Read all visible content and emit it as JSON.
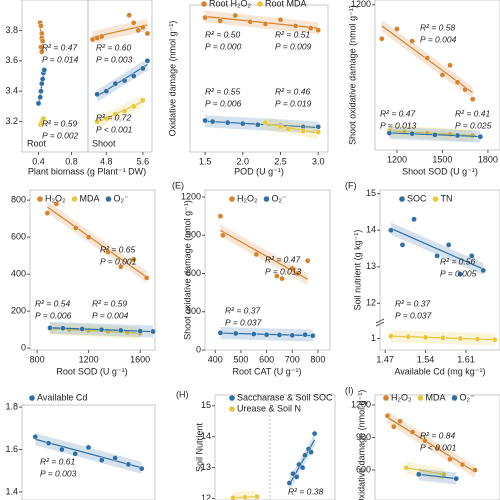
{
  "chart_data": [
    {
      "type": "scatter",
      "label": "Root",
      "xlabel": "Plant biomass (g Plant⁻¹ DW)",
      "xlim": [
        0.2,
        1.0
      ],
      "ylim": [
        3.0,
        4.0
      ],
      "xticks": [
        0.4,
        0.8
      ],
      "yticks": [
        3.2,
        3.4,
        3.6,
        3.8
      ],
      "series": [
        {
          "color": "#d9822b",
          "x": [
            0.42,
            0.43,
            0.44,
            0.44,
            0.45,
            0.43,
            0.44
          ],
          "y": [
            3.85,
            3.83,
            3.78,
            3.75,
            3.73,
            3.69,
            3.66
          ]
        },
        {
          "color": "#2f6fa8",
          "x": [
            0.4,
            0.42,
            0.43,
            0.44,
            0.45,
            0.46,
            0.47
          ],
          "y": [
            3.32,
            3.36,
            3.4,
            3.45,
            3.48,
            3.52,
            3.54
          ]
        },
        {
          "color": "#e8c73a",
          "x": [
            0.42,
            0.43,
            0.44,
            0.45,
            0.46
          ],
          "y": [
            3.18,
            3.19,
            3.2,
            3.21,
            3.22
          ]
        }
      ],
      "annotations": [
        {
          "text": "R² = 0.47",
          "color": "#5a7a95"
        },
        {
          "text": "P = 0.014",
          "color": "#5a7a95"
        },
        {
          "text": "R² = 0.59",
          "color": "#e8c73a"
        },
        {
          "text": "P = 0.002",
          "color": "#e8c73a"
        }
      ]
    },
    {
      "type": "scatter",
      "label": "Shoot",
      "xlim": [
        4.4,
        5.8
      ],
      "ylim": [
        3.0,
        4.0
      ],
      "xticks": [
        4.8,
        5.6
      ],
      "series": [
        {
          "color": "#d9822b",
          "x": [
            4.5,
            4.6,
            4.7,
            5.3,
            5.4,
            5.5,
            5.6,
            5.7
          ],
          "y": [
            3.74,
            3.75,
            3.76,
            3.9,
            3.85,
            3.8,
            3.82,
            3.78
          ]
        },
        {
          "color": "#2f6fa8",
          "x": [
            4.6,
            4.8,
            5.0,
            5.2,
            5.4,
            5.6,
            5.7
          ],
          "y": [
            3.38,
            3.4,
            3.45,
            3.47,
            3.5,
            3.55,
            3.6
          ]
        },
        {
          "color": "#e8c73a",
          "x": [
            4.6,
            4.8,
            5.0,
            5.2,
            5.4,
            5.6
          ],
          "y": [
            3.2,
            3.22,
            3.25,
            3.27,
            3.3,
            3.34
          ]
        }
      ],
      "annotations": [
        {
          "text": "R² = 0.60",
          "color": "#5a7a95"
        },
        {
          "text": "P = 0.003",
          "color": "#5a7a95"
        },
        {
          "text": "R² = 0.72",
          "color": "#e8c73a"
        },
        {
          "text": "P < 0.001",
          "color": "#e8c73a"
        }
      ]
    },
    {
      "type": "scatter",
      "xlabel": "POD (U g⁻¹)",
      "ylabel": "Oxidative damage (nmol g⁻¹)",
      "xlim": [
        1.3,
        3.13
      ],
      "ylim": [
        0,
        140
      ],
      "xticks": [
        1.5,
        {
          "value": 2,
          "label": "2.0"
        },
        2.5,
        {
          "value": 3,
          "label": "3.0"
        }
      ],
      "series": [
        {
          "name": "Root H₂O₂",
          "color": "#d9822b",
          "x": [
            1.5,
            1.7,
            1.9,
            2.1,
            2.3,
            2.5,
            2.7,
            2.9,
            3.0
          ],
          "y": [
            128,
            125,
            130,
            124,
            122,
            126,
            120,
            118,
            116
          ]
        },
        {
          "color": "#2f6fa8",
          "x": [
            1.5,
            1.6,
            1.8,
            2.0,
            2.2,
            2.5,
            2.8,
            3.0
          ],
          "y": [
            30,
            29,
            28,
            27,
            26,
            25,
            24,
            24
          ]
        },
        {
          "name": "Root MDA",
          "color": "#e8c73a",
          "x": [
            2.3,
            2.5,
            2.6,
            2.8,
            3.0
          ],
          "y": [
            28,
            24,
            22,
            20,
            19
          ]
        }
      ],
      "annotations": [
        {
          "text": "R² = 0.50",
          "color": "#d9822b"
        },
        {
          "text": "P = 0.000",
          "color": "#d9822b"
        },
        {
          "text": "R² = 0.51",
          "color": "#8a7a6a"
        },
        {
          "text": "P = 0.009",
          "color": "#8a7a6a"
        },
        {
          "text": "R² = 0.55",
          "color": "#5a7a95"
        },
        {
          "text": "P = 0.006",
          "color": "#5a7a95"
        },
        {
          "text": "R² = 0.46",
          "color": "#e8c73a"
        },
        {
          "text": "P = 0.019",
          "color": "#e8c73a"
        }
      ]
    },
    {
      "type": "scatter",
      "xlabel": "Shoot SOD (U g⁻¹)",
      "ylabel": "Shoot oxidative damage (nmol g⁻¹)",
      "xlim": [
        1055,
        1880
      ],
      "ylim": [
        0,
        1240
      ],
      "xticks": [
        1200,
        1500,
        1800
      ],
      "yticks": [
        1200
      ],
      "series": [
        {
          "color": "#d9822b",
          "x": [
            1100,
            1200,
            1300,
            1400,
            1500,
            1550,
            1600,
            1650,
            1700
          ],
          "y": [
            920,
            1000,
            900,
            760,
            620,
            700,
            560,
            500,
            420
          ]
        },
        {
          "color": "#e8c73a",
          "x": [
            1150,
            1250,
            1400,
            1550,
            1700
          ],
          "y": [
            160,
            150,
            140,
            130,
            120
          ]
        },
        {
          "color": "#2f6fa8",
          "x": [
            1150,
            1300,
            1450,
            1600,
            1750
          ],
          "y": [
            140,
            135,
            125,
            120,
            110
          ]
        }
      ],
      "annotations": [
        {
          "text": "R² = 0.58",
          "color": "#d9822b"
        },
        {
          "text": "P = 0.004",
          "color": "#d9822b"
        },
        {
          "text": "R² = 0.47",
          "color": "#e8c73a"
        },
        {
          "text": "P = 0.013",
          "color": "#e8c73a"
        },
        {
          "text": "R² = 0.41",
          "color": "#5a7a95"
        },
        {
          "text": "P = 0.025",
          "color": "#5a7a95"
        }
      ]
    },
    {
      "type": "scatter",
      "xlabel": "Root SOD (U g⁻¹)",
      "xlim": [
        745,
        1715
      ],
      "ylim": [
        -10,
        855
      ],
      "xticks": [
        800,
        1200,
        1600
      ],
      "yticks": [
        0,
        200,
        400,
        600,
        800
      ],
      "series": [
        {
          "name": "H₂O₂",
          "color": "#d9822b",
          "x": [
            880,
            950,
            1100,
            1200,
            1350,
            1450,
            1550,
            1650
          ],
          "y": [
            730,
            780,
            650,
            600,
            520,
            440,
            480,
            380
          ]
        },
        {
          "name": "MDA",
          "color": "#e8c73a",
          "x": [
            900,
            1050,
            1200,
            1350,
            1500,
            1600
          ],
          "y": [
            105,
            100,
            95,
            90,
            85,
            80
          ]
        },
        {
          "name": "O₂⁻",
          "color": "#2f6fa8",
          "x": [
            900,
            1000,
            1150,
            1300,
            1450,
            1600,
            1700
          ],
          "y": [
            110,
            108,
            104,
            100,
            96,
            92,
            90
          ]
        }
      ],
      "annotations": [
        {
          "text": "R² = 0.65",
          "color": "#d9822b"
        },
        {
          "text": "P = 0.001",
          "color": "#d9822b"
        },
        {
          "text": "R² = 0.54",
          "color": "#e8c73a"
        },
        {
          "text": "P = 0.006",
          "color": "#e8c73a"
        },
        {
          "text": "R² = 0.59",
          "color": "#5a7a95"
        },
        {
          "text": "P = 0.004",
          "color": "#5a7a95"
        }
      ]
    },
    {
      "type": "scatter",
      "label": "(E)",
      "xlabel": "Root CAT (U g⁻¹)",
      "ylabel": "Shoot oxidative damage (nmol g⁻¹)",
      "xlim": [
        360,
        847
      ],
      "ylim": [
        0,
        1255
      ],
      "xticks": [
        400,
        500,
        600,
        700,
        800
      ],
      "yticks": [
        0,
        300,
        600,
        900,
        1200
      ],
      "series": [
        {
          "name": "H₂O₂",
          "color": "#d9822b",
          "x": [
            420,
            430,
            560,
            640,
            660,
            700,
            720,
            760
          ],
          "y": [
            1050,
            900,
            750,
            580,
            560,
            640,
            600,
            700
          ]
        },
        {
          "name": "O₂⁻",
          "color": "#2f6fa8",
          "x": [
            420,
            480,
            550,
            600,
            650,
            700,
            750,
            780
          ],
          "y": [
            135,
            130,
            125,
            120,
            118,
            115,
            120,
            112
          ]
        }
      ],
      "annotations": [
        {
          "text": "R² = 0.47",
          "color": "#d9822b"
        },
        {
          "text": "P = 0.013",
          "color": "#d9822b"
        },
        {
          "text": "R² = 0.37",
          "color": "#5a7a95"
        },
        {
          "text": "P = 0.037",
          "color": "#5a7a95"
        }
      ]
    },
    {
      "type": "scatter",
      "label": "(F)",
      "xlabel": "Available Cd (mg kg⁻¹)",
      "ylabel": "Soil nutrient (g kg⁻¹)",
      "xlim": [
        1.461,
        1.669
      ],
      "ylim": [
        11.6,
        15.1
      ],
      "y2lim": [
        0.8,
        1.25
      ],
      "xticks": [
        1.47,
        1.54,
        1.61
      ],
      "yticks": [
        12,
        13,
        14,
        15
      ],
      "y2ticks": [
        1
      ],
      "series": [
        {
          "name": "SOC",
          "color": "#2f6fa8",
          "x": [
            1.48,
            1.5,
            1.52,
            1.56,
            1.58,
            1.6,
            1.62,
            1.64
          ],
          "y": [
            14.0,
            13.6,
            14.3,
            13.3,
            13.6,
            12.8,
            13.3,
            12.9
          ]
        },
        {
          "name": "TN",
          "color": "#e8c73a",
          "axis": "y2",
          "x": [
            1.48,
            1.51,
            1.54,
            1.57,
            1.6,
            1.63,
            1.66
          ],
          "y": [
            1.04,
            1.03,
            1.02,
            1.01,
            1.0,
            0.99,
            0.98
          ]
        }
      ],
      "annotations": [
        {
          "text": "R² = 0.56",
          "color": "#5a7a95"
        },
        {
          "text": "P = 0.005",
          "color": "#5a7a95"
        },
        {
          "text": "R² = 0.37",
          "color": "#e8c73a"
        },
        {
          "text": "P = 0.037",
          "color": "#e8c73a"
        }
      ]
    },
    {
      "type": "scatter",
      "xlim": [
        0,
        10
      ],
      "ylim": [
        1.362,
        1.81
      ],
      "yticks": [
        1.4,
        1.6,
        1.8
      ],
      "series": [
        {
          "name": "Available Cd",
          "color": "#2f6fa8",
          "x": [
            1,
            2,
            3,
            4,
            5,
            6,
            7,
            8,
            9
          ],
          "y": [
            1.66,
            1.63,
            1.6,
            1.58,
            1.61,
            1.55,
            1.56,
            1.53,
            1.51
          ]
        }
      ],
      "annotations": [
        {
          "text": "R² = 0.61",
          "color": "#333333"
        },
        {
          "text": "P = 0.003",
          "color": "#333333"
        }
      ]
    },
    {
      "type": "scatter",
      "label": "(H)",
      "ylabel": "Soil Nutrient",
      "xlim": [
        0,
        10
      ],
      "ylim": [
        11.95,
        15.35
      ],
      "yticks": [
        12,
        13,
        14,
        15
      ],
      "series": [
        {
          "name": "Saccharase & Soil SOC",
          "color": "#2f6fa8",
          "x": [
            6.2,
            6.5,
            6.8,
            7.0,
            7.3,
            7.5,
            7.8,
            8.0,
            8.3
          ],
          "y": [
            12.5,
            12.8,
            12.7,
            13.1,
            13.0,
            13.4,
            13.6,
            13.5,
            14.1
          ]
        },
        {
          "name": "Urease & Soil N",
          "color": "#e8c73a",
          "x": [
            1.5,
            2.5,
            3.5
          ],
          "y": [
            12.02,
            12.04,
            12.06
          ]
        }
      ],
      "annotations": [
        {
          "text": "R² = 0.38",
          "color": "#5a7a95"
        }
      ]
    },
    {
      "type": "scatter",
      "label": "(I)",
      "ylabel": "Oxidative damage (nmol g⁻¹)",
      "xlim": [
        0,
        10
      ],
      "ylim": [
        323,
        1292
      ],
      "yticks": [
        600,
        900,
        1200
      ],
      "series": [
        {
          "name": "H₂O₂",
          "color": "#d9822b",
          "x": [
            1,
            1.5,
            2,
            3,
            4,
            5,
            6,
            7,
            8
          ],
          "y": [
            1100,
            1000,
            1050,
            950,
            870,
            800,
            700,
            650,
            600
          ]
        },
        {
          "name": "MDA",
          "color": "#e8c73a",
          "x": [
            2.5,
            5.5
          ],
          "y": [
            620,
            560
          ]
        },
        {
          "name": "O₂⁻",
          "color": "#2f6fa8",
          "x": [
            3.5,
            6.5
          ],
          "y": [
            560,
            520
          ]
        }
      ],
      "annotations": [
        {
          "text": "R² = 0.84",
          "color": "#d9822b"
        },
        {
          "text": "P < 0.001",
          "color": "#d9822b"
        }
      ]
    }
  ]
}
